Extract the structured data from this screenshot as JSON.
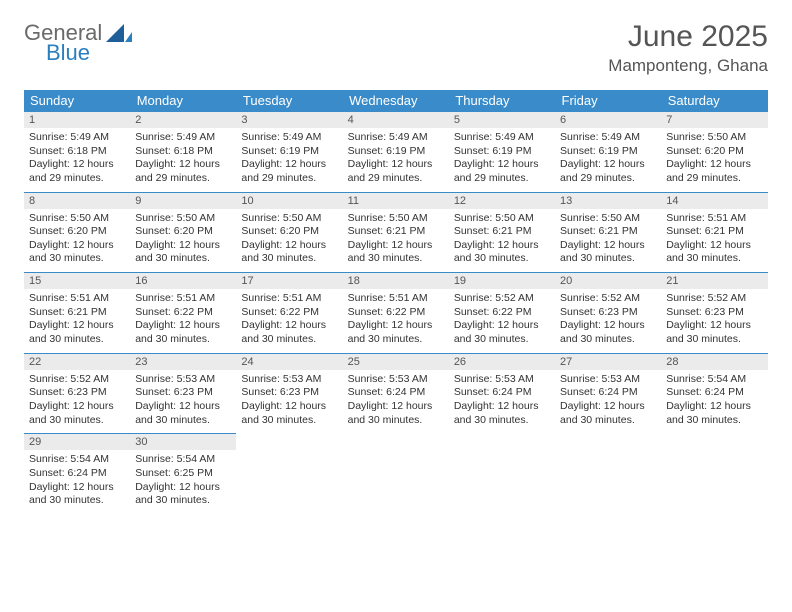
{
  "logo": {
    "line1": "General",
    "line2": "Blue"
  },
  "title": "June 2025",
  "location": "Mamponteng, Ghana",
  "header_color": "#3a8bc9",
  "header_text_color": "#ffffff",
  "daynum_bg": "#ebebeb",
  "border_color": "#3a8bc9",
  "text_color": "#333333",
  "title_color": "#555555",
  "days_of_week": [
    "Sunday",
    "Monday",
    "Tuesday",
    "Wednesday",
    "Thursday",
    "Friday",
    "Saturday"
  ],
  "weeks": [
    [
      {
        "n": "1",
        "sunrise": "5:49 AM",
        "sunset": "6:18 PM",
        "daylight": "12 hours and 29 minutes."
      },
      {
        "n": "2",
        "sunrise": "5:49 AM",
        "sunset": "6:18 PM",
        "daylight": "12 hours and 29 minutes."
      },
      {
        "n": "3",
        "sunrise": "5:49 AM",
        "sunset": "6:19 PM",
        "daylight": "12 hours and 29 minutes."
      },
      {
        "n": "4",
        "sunrise": "5:49 AM",
        "sunset": "6:19 PM",
        "daylight": "12 hours and 29 minutes."
      },
      {
        "n": "5",
        "sunrise": "5:49 AM",
        "sunset": "6:19 PM",
        "daylight": "12 hours and 29 minutes."
      },
      {
        "n": "6",
        "sunrise": "5:49 AM",
        "sunset": "6:19 PM",
        "daylight": "12 hours and 29 minutes."
      },
      {
        "n": "7",
        "sunrise": "5:50 AM",
        "sunset": "6:20 PM",
        "daylight": "12 hours and 29 minutes."
      }
    ],
    [
      {
        "n": "8",
        "sunrise": "5:50 AM",
        "sunset": "6:20 PM",
        "daylight": "12 hours and 30 minutes."
      },
      {
        "n": "9",
        "sunrise": "5:50 AM",
        "sunset": "6:20 PM",
        "daylight": "12 hours and 30 minutes."
      },
      {
        "n": "10",
        "sunrise": "5:50 AM",
        "sunset": "6:20 PM",
        "daylight": "12 hours and 30 minutes."
      },
      {
        "n": "11",
        "sunrise": "5:50 AM",
        "sunset": "6:21 PM",
        "daylight": "12 hours and 30 minutes."
      },
      {
        "n": "12",
        "sunrise": "5:50 AM",
        "sunset": "6:21 PM",
        "daylight": "12 hours and 30 minutes."
      },
      {
        "n": "13",
        "sunrise": "5:50 AM",
        "sunset": "6:21 PM",
        "daylight": "12 hours and 30 minutes."
      },
      {
        "n": "14",
        "sunrise": "5:51 AM",
        "sunset": "6:21 PM",
        "daylight": "12 hours and 30 minutes."
      }
    ],
    [
      {
        "n": "15",
        "sunrise": "5:51 AM",
        "sunset": "6:21 PM",
        "daylight": "12 hours and 30 minutes."
      },
      {
        "n": "16",
        "sunrise": "5:51 AM",
        "sunset": "6:22 PM",
        "daylight": "12 hours and 30 minutes."
      },
      {
        "n": "17",
        "sunrise": "5:51 AM",
        "sunset": "6:22 PM",
        "daylight": "12 hours and 30 minutes."
      },
      {
        "n": "18",
        "sunrise": "5:51 AM",
        "sunset": "6:22 PM",
        "daylight": "12 hours and 30 minutes."
      },
      {
        "n": "19",
        "sunrise": "5:52 AM",
        "sunset": "6:22 PM",
        "daylight": "12 hours and 30 minutes."
      },
      {
        "n": "20",
        "sunrise": "5:52 AM",
        "sunset": "6:23 PM",
        "daylight": "12 hours and 30 minutes."
      },
      {
        "n": "21",
        "sunrise": "5:52 AM",
        "sunset": "6:23 PM",
        "daylight": "12 hours and 30 minutes."
      }
    ],
    [
      {
        "n": "22",
        "sunrise": "5:52 AM",
        "sunset": "6:23 PM",
        "daylight": "12 hours and 30 minutes."
      },
      {
        "n": "23",
        "sunrise": "5:53 AM",
        "sunset": "6:23 PM",
        "daylight": "12 hours and 30 minutes."
      },
      {
        "n": "24",
        "sunrise": "5:53 AM",
        "sunset": "6:23 PM",
        "daylight": "12 hours and 30 minutes."
      },
      {
        "n": "25",
        "sunrise": "5:53 AM",
        "sunset": "6:24 PM",
        "daylight": "12 hours and 30 minutes."
      },
      {
        "n": "26",
        "sunrise": "5:53 AM",
        "sunset": "6:24 PM",
        "daylight": "12 hours and 30 minutes."
      },
      {
        "n": "27",
        "sunrise": "5:53 AM",
        "sunset": "6:24 PM",
        "daylight": "12 hours and 30 minutes."
      },
      {
        "n": "28",
        "sunrise": "5:54 AM",
        "sunset": "6:24 PM",
        "daylight": "12 hours and 30 minutes."
      }
    ],
    [
      {
        "n": "29",
        "sunrise": "5:54 AM",
        "sunset": "6:24 PM",
        "daylight": "12 hours and 30 minutes."
      },
      {
        "n": "30",
        "sunrise": "5:54 AM",
        "sunset": "6:25 PM",
        "daylight": "12 hours and 30 minutes."
      },
      null,
      null,
      null,
      null,
      null
    ]
  ],
  "labels": {
    "sunrise_prefix": "Sunrise: ",
    "sunset_prefix": "Sunset: ",
    "daylight_prefix": "Daylight: "
  }
}
